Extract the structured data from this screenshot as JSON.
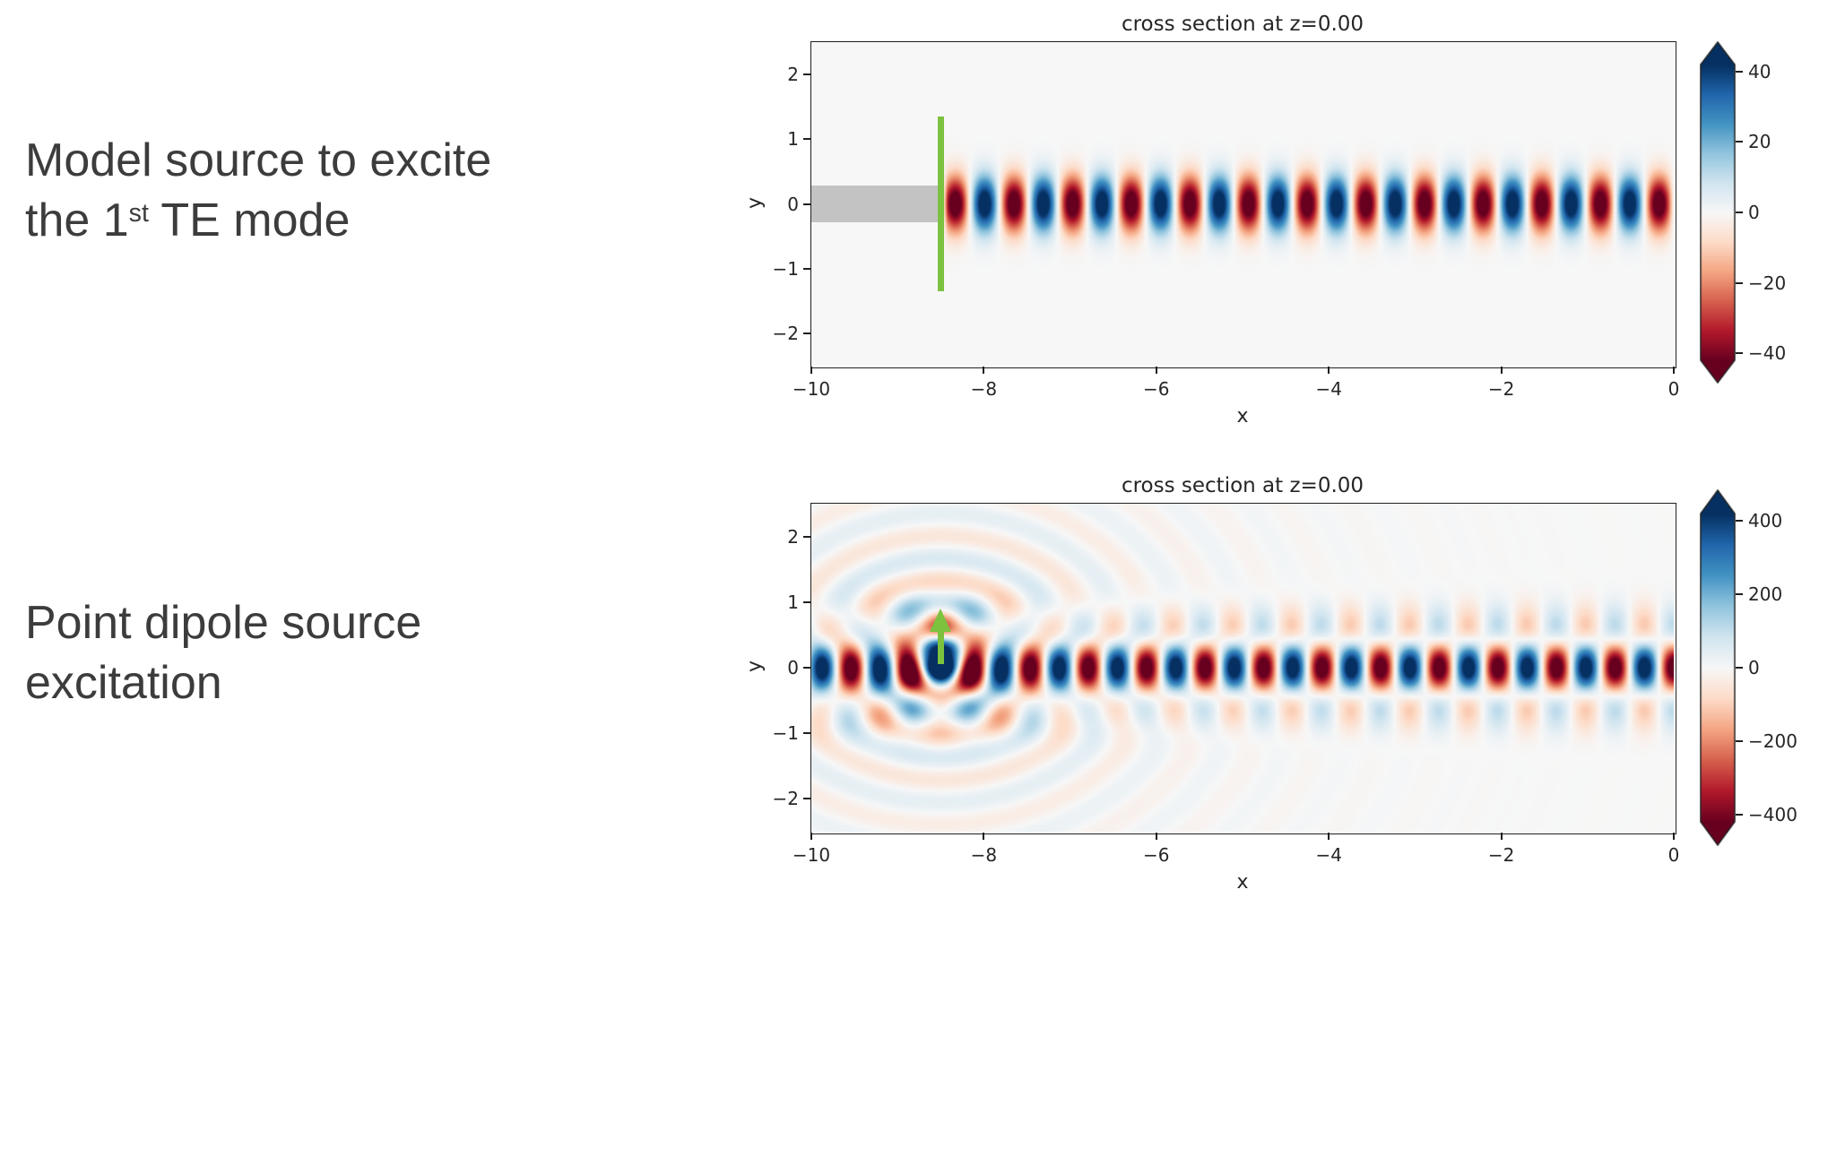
{
  "captions": [
    {
      "line1": "Model source to excite",
      "line2_pre": "the 1",
      "line2_sup": "st",
      "line2_post": " TE mode"
    },
    {
      "line1": "Point dipole source",
      "line2_pre": "excitation",
      "line2_sup": "",
      "line2_post": ""
    }
  ],
  "colors": {
    "caption_text": "#3c3c3c",
    "axis_text": "#262626",
    "spine": "#1f1f1f",
    "source_green": "#7cc23f",
    "structure_gray": "#c3c3c3",
    "plot_background": "#f7f7f7",
    "colormap_name": "RdBu",
    "colormap_stops": [
      "#67001f",
      "#b2182b",
      "#d6604d",
      "#f4a582",
      "#fddbc7",
      "#f7f7f7",
      "#d1e5f0",
      "#92c5de",
      "#4393c3",
      "#2166ac",
      "#053061"
    ]
  },
  "chart_data": [
    {
      "type": "heatmap",
      "title": "cross section at z=0.00",
      "xlabel": "x",
      "ylabel": "y",
      "xlim": [
        -10,
        0
      ],
      "ylim": [
        -2.5,
        2.5
      ],
      "xticks": [
        -10,
        -8,
        -6,
        -4,
        -2,
        0
      ],
      "yticks": [
        2,
        1,
        0,
        -1,
        -2
      ],
      "colorbar_ticks": [
        40,
        20,
        0,
        -20,
        -40
      ],
      "clim": [
        -42,
        42
      ],
      "legend_position": "colorbar-right",
      "grid": false,
      "description": "Field cross section: 1st TE waveguide mode launched by a mode source at x=-8.5, propagating in +x with alternating positive (blue) and negative (red) lobes centered on y=0; gray waveguide structure visible left of the source; green vertical line marks the mode source plane.",
      "field": {
        "kind": "mode",
        "source_x": -8.5,
        "wavelength": 0.68,
        "amplitude": 50,
        "profile_width": 0.42
      },
      "overlays": {
        "structure": {
          "x0": -10,
          "x1": -8.52,
          "y0": -0.28,
          "y1": 0.28
        },
        "mode_source_line": {
          "x": -8.5,
          "y0": -1.35,
          "y1": 1.35
        }
      }
    },
    {
      "type": "heatmap",
      "title": "cross section at z=0.00",
      "xlabel": "x",
      "ylabel": "y",
      "xlim": [
        -10,
        0
      ],
      "ylim": [
        -2.5,
        2.5
      ],
      "xticks": [
        -10,
        -8,
        -6,
        -4,
        -2,
        0
      ],
      "yticks": [
        2,
        1,
        0,
        -1,
        -2
      ],
      "colorbar_ticks": [
        400,
        200,
        0,
        -200,
        -400
      ],
      "clim": [
        -420,
        420
      ],
      "legend_position": "colorbar-right",
      "grid": false,
      "description": "Field cross section: point dipole source at (x,y)=(-8.5,~0.2) exciting the waveguide in both directions; alternating blue/red mode lobes along the full guide plus faint circular radiation ripples around the dipole; green upward arrow marks the dipole.",
      "field": {
        "kind": "dipole",
        "source_x": -8.5,
        "source_y": 0.15,
        "wavelength": 0.68,
        "amplitude": 500,
        "profile_width": 0.5,
        "radiation_amplitude": 155
      },
      "overlays": {
        "dipole_arrow": {
          "x": -8.5,
          "y0": 0.05,
          "y1": 0.9
        }
      }
    }
  ]
}
